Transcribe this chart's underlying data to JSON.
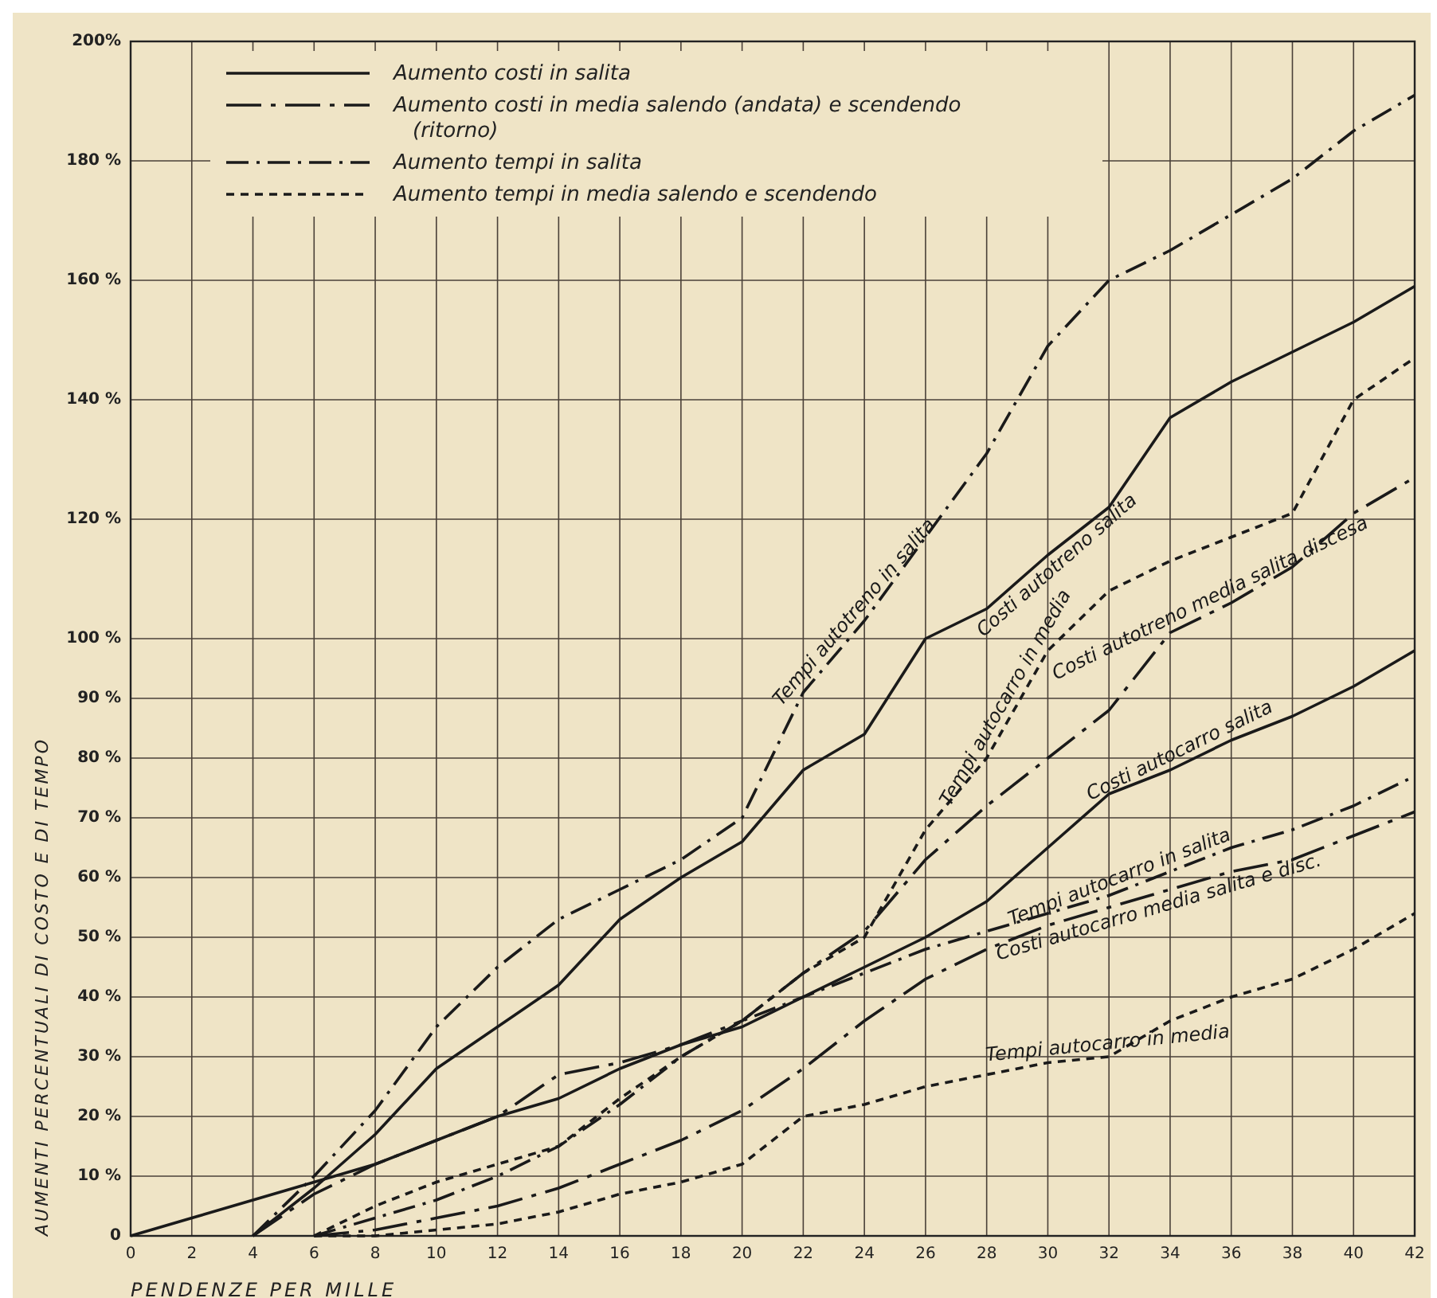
{
  "chart_data": {
    "type": "line",
    "xlabel": "PENDENZE PER MILLE",
    "ylabel": "AUMENTI PERCENTUALI DI COSTO E DI TEMPO",
    "xlim": [
      0,
      42
    ],
    "xticks": [
      0,
      2,
      4,
      6,
      8,
      10,
      12,
      14,
      16,
      18,
      20,
      22,
      24,
      26,
      28,
      30,
      32,
      34,
      36,
      38,
      40,
      42
    ],
    "ylim": [
      0,
      200
    ],
    "yticks": [
      0,
      {
        "value": 10,
        "label": "10 %"
      },
      {
        "value": 20,
        "label": "20 %"
      },
      {
        "value": 30,
        "label": "30 %"
      },
      {
        "value": 40,
        "label": "40 %"
      },
      {
        "value": 50,
        "label": "50 %"
      },
      {
        "value": 60,
        "label": "60 %"
      },
      {
        "value": 70,
        "label": "70 %"
      },
      {
        "value": 80,
        "label": "80 %"
      },
      {
        "value": 90,
        "label": "90 %"
      },
      {
        "value": 100,
        "label": "100 %"
      },
      {
        "value": 120,
        "label": "120 %"
      },
      {
        "value": 140,
        "label": "140 %"
      },
      {
        "value": 160,
        "label": "160 %"
      },
      {
        "value": 180,
        "label": "180 %"
      },
      {
        "value": 200,
        "label": "200%"
      }
    ],
    "grid": true,
    "marker": "none",
    "series": [
      {
        "name": "Costi autotreno salita",
        "color": "#1a1a1a",
        "line_style": "solid",
        "x": [
          4,
          6,
          8,
          10,
          12,
          14,
          16,
          18,
          20,
          22,
          24,
          26,
          28,
          30,
          32,
          34,
          36,
          38,
          40,
          42
        ],
        "values": [
          0,
          8,
          17,
          28,
          35,
          42,
          53,
          60,
          66,
          78,
          84,
          100,
          105,
          114,
          122,
          137,
          143,
          148,
          153,
          159
        ]
      },
      {
        "name": "Costi autotreno media salita discesa",
        "color": "#1a1a1a",
        "line_style": "dashed",
        "x": [
          4,
          6,
          8,
          10,
          12,
          14,
          16,
          18,
          20,
          22,
          24,
          26,
          28,
          30,
          32,
          34,
          36,
          38,
          40,
          42
        ],
        "values": [
          0,
          7,
          12,
          16,
          20,
          27,
          29,
          32,
          36,
          44,
          51,
          63,
          72,
          80,
          88,
          101,
          106,
          112,
          121,
          127
        ]
      },
      {
        "name": "Tempi autotreno in salita",
        "color": "#1a1a1a",
        "line_style": "dashdot",
        "x": [
          4,
          6,
          8,
          10,
          12,
          14,
          16,
          18,
          20,
          22,
          24,
          26,
          28,
          30,
          32,
          34,
          36,
          38,
          40,
          42
        ],
        "values": [
          0,
          10,
          21,
          35,
          45,
          53,
          58,
          63,
          70,
          91,
          103,
          117,
          131,
          149,
          160,
          165,
          171,
          177,
          185,
          191
        ]
      },
      {
        "name": "Tempi autocarro in media",
        "color": "#1a1a1a",
        "line_style": "dotted",
        "x": [
          6,
          8,
          10,
          12,
          14,
          16,
          18,
          20,
          22,
          24,
          26,
          28,
          30,
          32,
          34,
          36,
          38,
          40,
          42
        ],
        "values": [
          0,
          5,
          9,
          12,
          15,
          23,
          30,
          36,
          44,
          50,
          68,
          80,
          98,
          108,
          113,
          117,
          121,
          140,
          147
        ]
      },
      {
        "name": "Costi autocarro salita",
        "color": "#1a1a1a",
        "line_style": "solid",
        "x": [
          0,
          2,
          4,
          6,
          8,
          10,
          12,
          14,
          16,
          18,
          20,
          22,
          24,
          26,
          28,
          30,
          32,
          34,
          36,
          38,
          40,
          42
        ],
        "values": [
          0,
          3,
          6,
          9,
          12,
          16,
          20,
          23,
          28,
          32,
          35,
          40,
          45,
          50,
          56,
          65,
          74,
          78,
          83,
          87,
          92,
          98
        ]
      },
      {
        "name": "Costi autocarro media salita e disc.",
        "color": "#1a1a1a",
        "line_style": "dashed",
        "x": [
          6,
          8,
          10,
          12,
          14,
          16,
          18,
          20,
          22,
          24,
          26,
          28,
          30,
          32,
          34,
          36,
          38,
          40,
          42
        ],
        "values": [
          0,
          1,
          3,
          5,
          8,
          12,
          16,
          21,
          28,
          36,
          43,
          48,
          52,
          55,
          58,
          61,
          63,
          67,
          71
        ]
      },
      {
        "name": "Tempi autocarro in salita",
        "color": "#1a1a1a",
        "line_style": "dashdot",
        "x": [
          6,
          8,
          10,
          12,
          14,
          16,
          18,
          20,
          22,
          24,
          26,
          28,
          30,
          32,
          34,
          36,
          38,
          40,
          42
        ],
        "values": [
          0,
          3,
          6,
          10,
          15,
          22,
          30,
          36,
          40,
          44,
          48,
          51,
          54,
          57,
          61,
          65,
          68,
          72,
          77
        ]
      },
      {
        "name": "Tempi autocarro in media",
        "color": "#1a1a1a",
        "line_style": "dotted",
        "x": [
          6,
          8,
          10,
          12,
          14,
          16,
          18,
          20,
          22,
          24,
          26,
          28,
          30,
          32,
          34,
          36,
          38,
          40,
          42
        ],
        "values": [
          0,
          0,
          1,
          2,
          4,
          7,
          9,
          12,
          20,
          22,
          25,
          27,
          29,
          30,
          36,
          40,
          43,
          48,
          54
        ]
      }
    ],
    "annotations": [
      "Aumento costi in salita",
      "Aumento costi in media salendo (andata) e scendendo (ritorno)",
      "Aumento tempi in salita",
      "Aumento tempi in media salendo e scendendo"
    ]
  }
}
